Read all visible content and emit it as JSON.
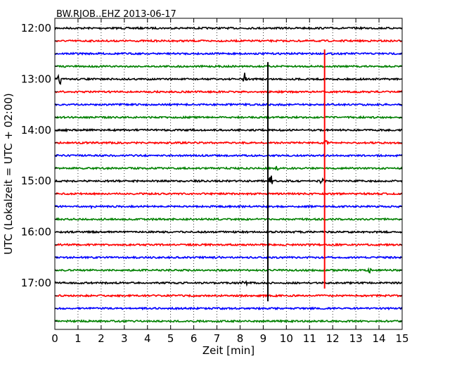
{
  "chart_data": {
    "type": "line",
    "title": "BW.RJOB..EHZ 2013-06-17",
    "xlabel": "Zeit  [min]",
    "ylabel": "UTC (Lokalzeit = UTC + 02:00)",
    "xlim": [
      0,
      15
    ],
    "x_ticks": [
      "0",
      "1",
      "2",
      "3",
      "4",
      "5",
      "6",
      "7",
      "8",
      "9",
      "10",
      "11",
      "12",
      "13",
      "14",
      "15"
    ],
    "y_tick_labels": [
      {
        "label": "12:00",
        "trace": 0
      },
      {
        "label": "13:00",
        "trace": 4
      },
      {
        "label": "14:00",
        "trace": 8
      },
      {
        "label": "15:00",
        "trace": 12
      },
      {
        "label": "16:00",
        "trace": 16
      },
      {
        "label": "17:00",
        "trace": 20
      }
    ],
    "trace_interval_min": 15,
    "trace_count": 24,
    "trace_colors": [
      "#000000",
      "#ff0000",
      "#0000ff",
      "#008000"
    ],
    "grid": "vertical dotted at each minute",
    "events": [
      {
        "trace": 1,
        "minute": 5.8,
        "amp": 0.25
      },
      {
        "trace": 4,
        "minute": 0.2,
        "amp": 1.6
      },
      {
        "trace": 4,
        "minute": 8.2,
        "amp": 1.4
      },
      {
        "trace": 8,
        "minute": 0.5,
        "amp": 0.35
      },
      {
        "trace": 8,
        "minute": 5.0,
        "amp": 0.35
      },
      {
        "trace": 8,
        "minute": 13.8,
        "amp": 0.2
      },
      {
        "trace": 9,
        "minute": 11.7,
        "amp": 1.5
      },
      {
        "trace": 11,
        "minute": 9.6,
        "amp": 0.7
      },
      {
        "trace": 12,
        "minute": 9.3,
        "amp": 2.0
      },
      {
        "trace": 12,
        "minute": 11.5,
        "amp": 1.2
      },
      {
        "trace": 12,
        "minute": 1.2,
        "amp": 0.2
      },
      {
        "trace": 12,
        "minute": 13.8,
        "amp": 0.25
      },
      {
        "trace": 14,
        "minute": 1.65,
        "amp": 0.9
      },
      {
        "trace": 18,
        "minute": 7.1,
        "amp": 0.3
      },
      {
        "trace": 20,
        "minute": 8.2,
        "amp": 1.6
      },
      {
        "trace": 22,
        "minute": 2.5,
        "amp": 0.2
      },
      {
        "trace": 22,
        "minute": 3.7,
        "amp": 0.2
      },
      {
        "trace": 23,
        "minute": 5.3,
        "amp": 0.25
      },
      {
        "trace": 21,
        "minute": 9.5,
        "amp": 0.35
      },
      {
        "trace": 19,
        "minute": 13.6,
        "amp": 0.6
      }
    ],
    "spikes": [
      {
        "minute": 9.2,
        "from_trace": 3,
        "to_trace": 21,
        "color": "#000000"
      },
      {
        "minute": 11.65,
        "from_trace": 2,
        "to_trace": 20,
        "color": "#ff0000"
      }
    ]
  }
}
